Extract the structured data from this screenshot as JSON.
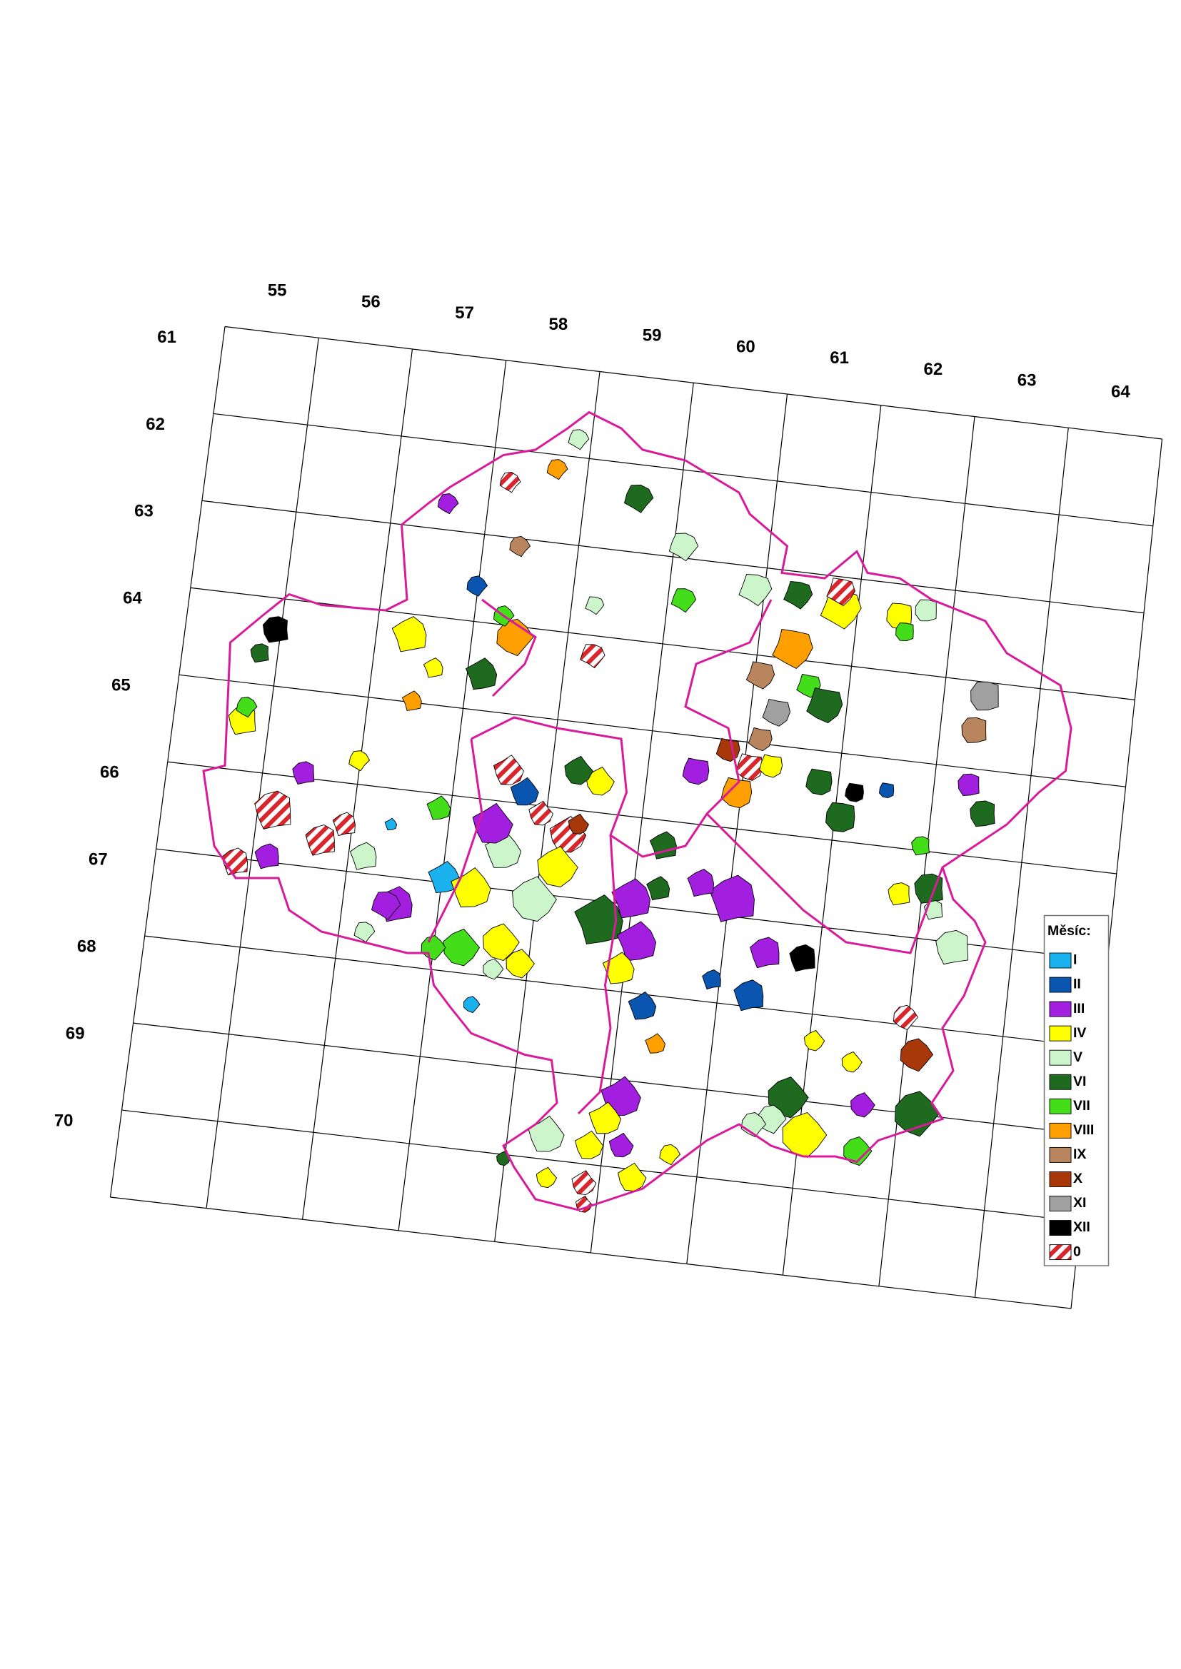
{
  "map": {
    "column_labels": [
      "55",
      "56",
      "57",
      "58",
      "59",
      "60",
      "61",
      "62",
      "63",
      "64"
    ],
    "row_labels": [
      "61",
      "62",
      "63",
      "64",
      "65",
      "66",
      "67",
      "68",
      "69",
      "70"
    ],
    "legend": {
      "title": "Měsíc:",
      "items": [
        {
          "label": "I",
          "color": "#1ab2ee"
        },
        {
          "label": "II",
          "color": "#0a55b0"
        },
        {
          "label": "III",
          "color": "#a21fe0"
        },
        {
          "label": "IV",
          "color": "#ffff00"
        },
        {
          "label": "V",
          "color": "#ccf5cc"
        },
        {
          "label": "VI",
          "color": "#1e6a1e"
        },
        {
          "label": "VII",
          "color": "#44dd1a"
        },
        {
          "label": "VIII",
          "color": "#ffa000"
        },
        {
          "label": "IX",
          "color": "#b8855e"
        },
        {
          "label": "X",
          "color": "#a8380a"
        },
        {
          "label": "XI",
          "color": "#a0a0a0"
        },
        {
          "label": "XII",
          "color": "#000000"
        },
        {
          "label": "0",
          "color": "hatch"
        }
      ]
    }
  }
}
